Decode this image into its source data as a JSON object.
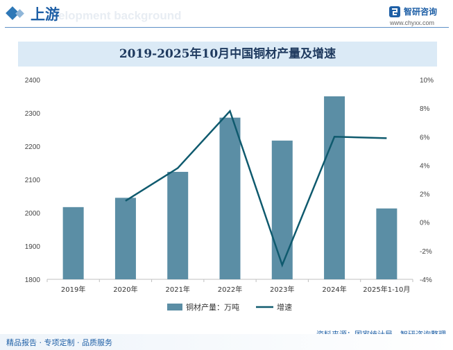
{
  "header": {
    "section_title": "上游",
    "watermark": "elopment background",
    "brand_name": "智研咨询",
    "brand_url": "www.chyxx.com"
  },
  "colors": {
    "bar": "#5b8ea5",
    "line": "#0f5a6e",
    "accent": "#1e5fa6",
    "title_band": "#dbeaf6"
  },
  "chart_data": {
    "type": "bar",
    "title": "2019-2025年10月中国铜材产量及增速",
    "categories": [
      "2019年",
      "2020年",
      "2021年",
      "2022年",
      "2023年",
      "2024年",
      "2025年1-10月"
    ],
    "series": [
      {
        "name": "铜材产量：万吨",
        "type": "bar",
        "axis": "left",
        "values": [
          2017,
          2045,
          2123,
          2286,
          2217,
          2350,
          2013
        ]
      },
      {
        "name": "增速",
        "type": "line",
        "axis": "right",
        "values": [
          null,
          1.5,
          3.8,
          7.8,
          -3.0,
          6.0,
          5.9
        ]
      }
    ],
    "y_left": {
      "min": 1800,
      "max": 2400,
      "step": 100,
      "ticks": [
        "1800",
        "1900",
        "2000",
        "2100",
        "2200",
        "2300",
        "2400"
      ]
    },
    "y_right": {
      "min": -4,
      "max": 10,
      "step": 2,
      "ticks": [
        "-4%",
        "-2%",
        "0%",
        "2%",
        "4%",
        "6%",
        "8%",
        "10%"
      ]
    },
    "grid": false,
    "legend_position": "bottom"
  },
  "source": "资料来源：国家统计局、智研咨询整理",
  "footer": "精品报告 · 专项定制 · 品质服务"
}
